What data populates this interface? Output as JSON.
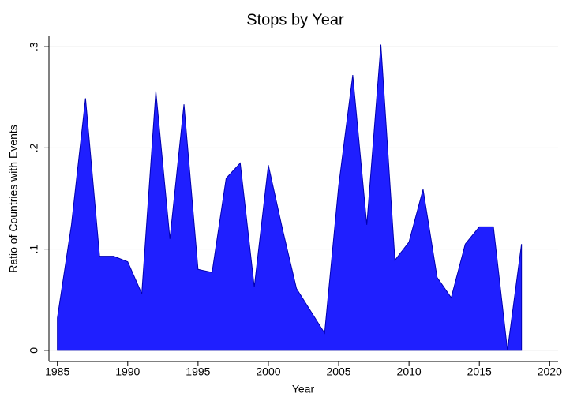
{
  "chart_data": {
    "type": "area",
    "title": "Stops by Year",
    "x_label": "Year",
    "y_label": "Ratio of Countries with Events",
    "x": [
      1985,
      1986,
      1987,
      1988,
      1989,
      1990,
      1991,
      1992,
      1993,
      1994,
      1995,
      1996,
      1997,
      1998,
      1999,
      2000,
      2001,
      2002,
      2003,
      2004,
      2005,
      2006,
      2007,
      2008,
      2009,
      2010,
      2011,
      2012,
      2013,
      2014,
      2015,
      2016,
      2017,
      2018
    ],
    "series": [
      {
        "color": "#1f1fff",
        "values": [
          0.032,
          0.124,
          0.249,
          0.093,
          0.093,
          0.0875,
          0.056,
          0.256,
          0.11,
          0.243,
          0.08,
          0.077,
          0.17,
          0.185,
          0.0625,
          0.183,
          0.12,
          0.061,
          0.039,
          0.017,
          0.1625,
          0.272,
          0.124,
          0.302,
          0.089,
          0.107,
          0.159,
          0.072,
          0.052,
          0.105,
          0.122,
          0.122,
          0,
          0.105
        ]
      }
    ],
    "xlim": [
      1984.4,
      2020.6
    ],
    "xticks": [
      1985,
      1990,
      1995,
      2000,
      2005,
      2010,
      2015,
      2020
    ],
    "ylim": [
      -0.011,
      0.311
    ],
    "yticks": [
      0,
      {
        "value": 0.1,
        "label": ".1"
      },
      {
        "value": 0.2,
        "label": ".2"
      },
      {
        "value": 0.3,
        "label": ".3"
      }
    ],
    "grid": true
  }
}
